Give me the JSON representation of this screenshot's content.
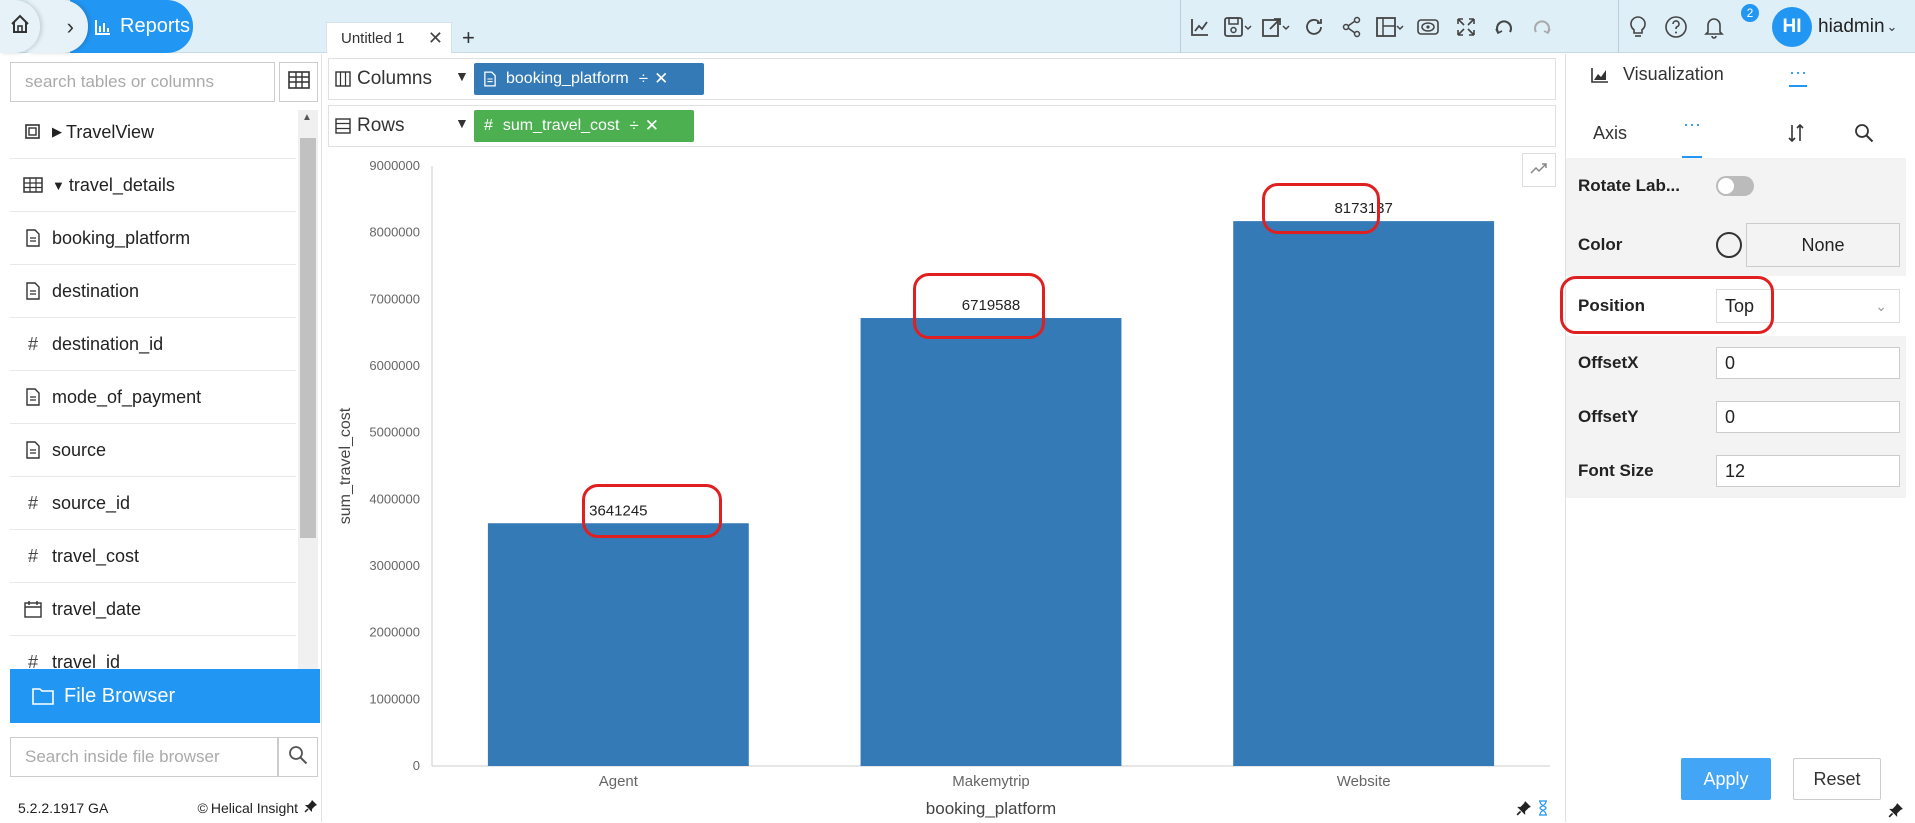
{
  "header": {
    "reports_label": "Reports",
    "tabs": [
      {
        "label": "Untitled 1"
      }
    ],
    "user": {
      "initials": "HI",
      "name": "hiadmin"
    },
    "notification_count": "2"
  },
  "left_panel": {
    "search_placeholder": "search tables or columns",
    "tree": [
      {
        "label": "TravelView",
        "icon": "view-icon"
      },
      {
        "label": "travel_details",
        "icon": "table-icon"
      },
      {
        "label": "booking_platform",
        "icon": "text-field-icon"
      },
      {
        "label": "destination",
        "icon": "text-field-icon"
      },
      {
        "label": "destination_id",
        "icon": "numeric-field-icon"
      },
      {
        "label": "mode_of_payment",
        "icon": "text-field-icon"
      },
      {
        "label": "source",
        "icon": "text-field-icon"
      },
      {
        "label": "source_id",
        "icon": "numeric-field-icon"
      },
      {
        "label": "travel_cost",
        "icon": "numeric-field-icon"
      },
      {
        "label": "travel_date",
        "icon": "date-field-icon"
      },
      {
        "label": "travel_id",
        "icon": "numeric-field-icon"
      }
    ],
    "file_browser_label": "File Browser",
    "file_search_placeholder": "Search inside file browser",
    "version": "5.2.2.1917 GA",
    "brand": "Helical Insight"
  },
  "shelves": {
    "columns_label": "Columns",
    "rows_label": "Rows",
    "columns_pill": "booking_platform",
    "rows_pill": "sum_travel_cost",
    "pill_column_color": "#337ab7",
    "pill_row_color": "#4caf50"
  },
  "chart_data": {
    "type": "bar",
    "categories": [
      "Agent",
      "Makemytrip",
      "Website"
    ],
    "values": [
      3641245,
      6719588,
      8173137
    ],
    "data_labels": [
      "3641245",
      "6719588",
      "8173137"
    ],
    "xlabel": "booking_platform",
    "ylabel": "sum_travel_cost",
    "ylim": [
      0,
      9000000
    ],
    "yticks": [
      "0",
      "1000000",
      "2000000",
      "3000000",
      "4000000",
      "5000000",
      "6000000",
      "7000000",
      "8000000",
      "9000000"
    ],
    "bar_color": "#337ab7",
    "label_position": "top",
    "grid": false
  },
  "right_panel": {
    "visualization_label": "Visualization",
    "axis_label": "Axis",
    "more_label": "···",
    "props": {
      "rotate_label": "Rotate Lab...",
      "color_label": "Color",
      "color_value": "None",
      "position_label": "Position",
      "position_value": "Top",
      "offsetx_label": "OffsetX",
      "offsetx_value": "0",
      "offsety_label": "OffsetY",
      "offsety_value": "0",
      "fontsize_label": "Font Size",
      "fontsize_value": "12"
    },
    "apply_label": "Apply",
    "reset_label": "Reset"
  },
  "colors": {
    "accent": "#2196f3",
    "highlight": "#e02020"
  }
}
